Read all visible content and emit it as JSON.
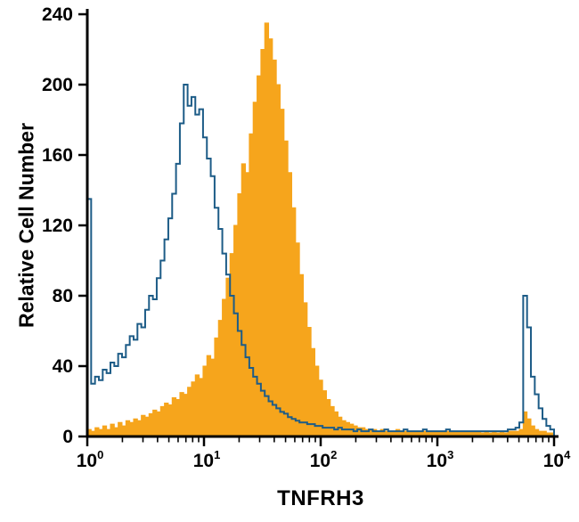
{
  "figure": {
    "ylabel": "Relative Cell Number",
    "xlabel": "TNFRH3"
  },
  "chart_data": {
    "type": "area",
    "subtype": "flow-cytometry-histogram-overlay",
    "title": "",
    "xlabel": "TNFRH3",
    "ylabel": "Relative Cell Number",
    "x_scale": "log10",
    "xlim_log10": [
      0,
      4
    ],
    "ylim": [
      0,
      240
    ],
    "grid": false,
    "y_ticks": [
      0,
      40,
      80,
      120,
      160,
      200,
      240
    ],
    "x_ticks": [
      {
        "log10": 0,
        "base": "10",
        "exp": "0"
      },
      {
        "log10": 1,
        "base": "10",
        "exp": "1"
      },
      {
        "log10": 2,
        "base": "10",
        "exp": "2"
      },
      {
        "log10": 3,
        "base": "10",
        "exp": "3"
      },
      {
        "log10": 4,
        "base": "10",
        "exp": "4"
      }
    ],
    "colors": {
      "axis": "#000000",
      "outline_blue": "#1D5C87",
      "filled_orange": "#F6A51C",
      "background": "#FFFFFF"
    },
    "bins_log10": {
      "start": 0,
      "end": 4,
      "count": 121
    },
    "series": [
      {
        "name": "orange-filled-histogram",
        "style": "filled",
        "color": "#F6A51C",
        "peak": {
          "x_log10": 1.52,
          "y": 235
        },
        "values": [
          4,
          3,
          5,
          4,
          6,
          4,
          7,
          5,
          8,
          6,
          9,
          8,
          10,
          9,
          12,
          11,
          13,
          15,
          14,
          17,
          19,
          18,
          22,
          21,
          25,
          24,
          28,
          31,
          35,
          33,
          40,
          46,
          44,
          56,
          66,
          78,
          90,
          104,
          120,
          138,
          155,
          150,
          172,
          190,
          205,
          220,
          235,
          226,
          214,
          200,
          186,
          168,
          150,
          130,
          110,
          92,
          76,
          62,
          50,
          40,
          32,
          26,
          21,
          17,
          14,
          11,
          9,
          8,
          7,
          6,
          5,
          5,
          4,
          4,
          4,
          3,
          4,
          3,
          3,
          3,
          4,
          3,
          3,
          3,
          3,
          3,
          3,
          3,
          3,
          3,
          3,
          3,
          3,
          3,
          3,
          3,
          3,
          3,
          3,
          3,
          3,
          3,
          2,
          3,
          2,
          3,
          2,
          3,
          2,
          3,
          3,
          3,
          4,
          14,
          10,
          6,
          4,
          3,
          3,
          2,
          2
        ]
      },
      {
        "name": "blue-open-outline-histogram",
        "style": "outline",
        "color": "#1D5C87",
        "peak": {
          "x_log10": 0.83,
          "y": 200
        },
        "values": [
          135,
          30,
          34,
          32,
          38,
          36,
          42,
          40,
          47,
          45,
          52,
          57,
          55,
          64,
          62,
          72,
          80,
          78,
          90,
          100,
          112,
          124,
          138,
          155,
          178,
          200,
          188,
          193,
          183,
          186,
          170,
          158,
          148,
          130,
          118,
          104,
          92,
          80,
          70,
          60,
          52,
          45,
          39,
          34,
          30,
          26,
          23,
          20,
          18,
          16,
          14,
          13,
          11,
          10,
          9,
          8,
          8,
          7,
          7,
          6,
          6,
          5,
          5,
          5,
          4,
          5,
          4,
          4,
          4,
          3,
          4,
          3,
          3,
          4,
          3,
          3,
          3,
          4,
          3,
          3,
          3,
          3,
          4,
          3,
          3,
          3,
          3,
          4,
          3,
          3,
          3,
          3,
          3,
          4,
          3,
          3,
          3,
          3,
          3,
          3,
          3,
          3,
          3,
          3,
          3,
          3,
          3,
          3,
          3,
          4,
          4,
          5,
          8,
          80,
          62,
          34,
          24,
          16,
          10,
          6,
          4
        ]
      }
    ]
  }
}
